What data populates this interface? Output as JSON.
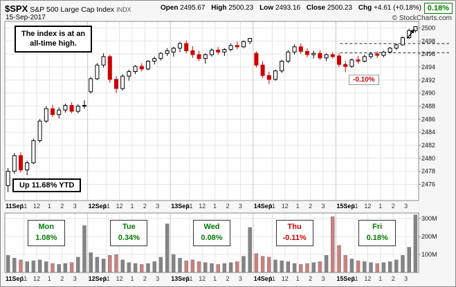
{
  "header": {
    "symbol": "$SPX",
    "name": "S&P 500 Large Cap Index",
    "exchange": "INDX",
    "date": "15-Sep-2017",
    "credit": "© StockCharts.com",
    "quote": {
      "open_label": "Open",
      "open": "2495.67",
      "high_label": "High",
      "high": "2500.23",
      "low_label": "Low",
      "low": "2493.16",
      "close_label": "Close",
      "close": "2500.23",
      "chg_label": "Chg",
      "chg": "+4.61 (+0.18%)"
    }
  },
  "annotations": {
    "all_time_high": "The index is at an all-time high.",
    "ytd": "Up 11.68% YTD",
    "friday_dip": "-0.10%",
    "friday_gain_badge": "0.18%"
  },
  "colors": {
    "candle_up_stroke": "#000000",
    "candle_up_fill": "#ffffff",
    "candle_down": "#cc0000",
    "volume_up": "#848484",
    "volume_down": "#cc8080",
    "positive_text": "#007a00",
    "negative_text": "#cc0000",
    "grid": "#e4e4e4",
    "day_grid": "#c6c6c6",
    "plot_border": "#888888"
  },
  "chart_data": [
    {
      "type": "candlestick",
      "title": "$SPX intraday, 5 trading days (11-15 Sep 2017), 30-minute bars",
      "ylim": [
        2473.5,
        2501
      ],
      "yticks": [
        2476,
        2478,
        2480,
        2482,
        2484,
        2486,
        2488,
        2490,
        2492,
        2494,
        2496,
        2498,
        2500
      ],
      "session": {
        "start_hour": 9.5,
        "end_hour": 16
      },
      "time_ticks": {
        "hours": [
          11,
          12,
          13,
          14,
          15
        ],
        "labels": [
          "11",
          "12",
          "1",
          "2",
          "3"
        ]
      },
      "days": [
        {
          "label": "11Sep",
          "weekday": "Mon",
          "change": "1.08%",
          "direction": "up"
        },
        {
          "label": "12Sep",
          "weekday": "Tue",
          "change": "0.34%",
          "direction": "up"
        },
        {
          "label": "13Sep",
          "weekday": "Wed",
          "change": "0.08%",
          "direction": "up"
        },
        {
          "label": "14Sep",
          "weekday": "Thu",
          "change": "-0.11%",
          "direction": "down"
        },
        {
          "label": "15Sep",
          "weekday": "Fri",
          "change": "0.18%",
          "direction": "up"
        }
      ],
      "dashed_levels": [
        {
          "price": 2497.6,
          "start_day": 4.05
        },
        {
          "price": 2496.2,
          "start_day": 4.05
        }
      ],
      "breakout_arrow": {
        "candle_index": 64,
        "price": 2500.2
      },
      "candles_ohlc": [
        [
          2475.8,
          2478.5,
          2474.8,
          2478.0
        ],
        [
          2478.0,
          2480.8,
          2477.6,
          2480.4
        ],
        [
          2480.4,
          2480.9,
          2477.8,
          2478.2
        ],
        [
          2478.2,
          2479.6,
          2477.4,
          2479.3
        ],
        [
          2479.3,
          2483.0,
          2479.1,
          2482.7
        ],
        [
          2482.7,
          2486.0,
          2482.4,
          2485.7
        ],
        [
          2485.7,
          2488.0,
          2485.4,
          2487.6
        ],
        [
          2487.6,
          2488.2,
          2486.3,
          2486.7
        ],
        [
          2486.7,
          2487.8,
          2486.1,
          2487.4
        ],
        [
          2487.4,
          2488.4,
          2487.0,
          2488.1
        ],
        [
          2488.1,
          2488.6,
          2486.9,
          2487.2
        ],
        [
          2487.2,
          2488.3,
          2486.9,
          2488.0
        ],
        [
          2488.0,
          2488.9,
          2487.6,
          2488.1
        ],
        [
          2490.2,
          2492.5,
          2489.9,
          2492.2
        ],
        [
          2492.2,
          2494.6,
          2492.0,
          2494.3
        ],
        [
          2494.3,
          2496.1,
          2493.9,
          2495.6
        ],
        [
          2495.6,
          2495.9,
          2491.6,
          2492.1
        ],
        [
          2492.1,
          2492.6,
          2490.0,
          2490.7
        ],
        [
          2490.7,
          2492.9,
          2490.4,
          2492.6
        ],
        [
          2492.6,
          2493.6,
          2491.9,
          2493.3
        ],
        [
          2493.3,
          2494.3,
          2492.9,
          2494.1
        ],
        [
          2494.1,
          2494.6,
          2493.3,
          2493.7
        ],
        [
          2493.7,
          2495.1,
          2493.5,
          2494.9
        ],
        [
          2494.9,
          2495.6,
          2494.4,
          2495.3
        ],
        [
          2495.3,
          2496.3,
          2495.0,
          2496.1
        ],
        [
          2496.1,
          2496.9,
          2495.7,
          2496.5
        ],
        [
          2496.3,
          2497.1,
          2495.6,
          2496.9
        ],
        [
          2496.9,
          2497.9,
          2496.3,
          2497.6
        ],
        [
          2497.6,
          2498.1,
          2496.1,
          2496.5
        ],
        [
          2496.5,
          2497.2,
          2495.4,
          2495.9
        ],
        [
          2495.9,
          2496.5,
          2494.9,
          2495.3
        ],
        [
          2495.3,
          2496.1,
          2494.5,
          2495.9
        ],
        [
          2495.9,
          2496.9,
          2495.6,
          2496.6
        ],
        [
          2496.6,
          2497.1,
          2495.9,
          2496.3
        ],
        [
          2496.3,
          2496.9,
          2495.7,
          2496.7
        ],
        [
          2496.7,
          2497.6,
          2496.4,
          2497.3
        ],
        [
          2497.3,
          2497.9,
          2496.7,
          2497.1
        ],
        [
          2497.1,
          2498.1,
          2496.9,
          2497.9
        ],
        [
          2497.9,
          2498.4,
          2497.5,
          2498.4
        ],
        [
          2496.1,
          2496.4,
          2493.9,
          2494.3
        ],
        [
          2494.3,
          2494.9,
          2492.3,
          2492.7
        ],
        [
          2492.7,
          2493.3,
          2491.4,
          2492.1
        ],
        [
          2492.1,
          2493.6,
          2491.9,
          2493.4
        ],
        [
          2493.4,
          2495.1,
          2493.1,
          2494.9
        ],
        [
          2494.9,
          2496.6,
          2494.6,
          2496.3
        ],
        [
          2496.3,
          2497.5,
          2495.9,
          2497.1
        ],
        [
          2497.1,
          2497.6,
          2496.0,
          2496.4
        ],
        [
          2496.4,
          2496.9,
          2495.5,
          2495.9
        ],
        [
          2495.9,
          2496.5,
          2495.3,
          2496.1
        ],
        [
          2496.1,
          2496.6,
          2495.1,
          2495.4
        ],
        [
          2495.4,
          2496.1,
          2494.9,
          2495.9
        ],
        [
          2495.9,
          2496.3,
          2495.3,
          2495.6
        ],
        [
          2495.7,
          2496.1,
          2494.0,
          2494.4
        ],
        [
          2494.4,
          2494.9,
          2493.2,
          2494.1
        ],
        [
          2494.1,
          2495.3,
          2493.9,
          2495.1
        ],
        [
          2495.1,
          2495.7,
          2494.5,
          2494.9
        ],
        [
          2494.9,
          2495.9,
          2494.7,
          2495.6
        ],
        [
          2495.6,
          2496.3,
          2495.3,
          2496.0
        ],
        [
          2496.0,
          2496.4,
          2495.4,
          2495.8
        ],
        [
          2495.8,
          2496.5,
          2495.5,
          2496.3
        ],
        [
          2496.3,
          2497.1,
          2496.1,
          2496.9
        ],
        [
          2496.9,
          2497.6,
          2496.6,
          2497.4
        ],
        [
          2497.4,
          2498.7,
          2497.3,
          2498.5
        ],
        [
          2498.5,
          2499.9,
          2498.3,
          2499.6
        ],
        [
          2499.6,
          2500.2,
          2499.3,
          2500.2
        ]
      ]
    },
    {
      "type": "bar",
      "title": "Volume",
      "units": "millions of shares",
      "ylim": [
        0,
        330
      ],
      "yticks": [
        {
          "value": 100,
          "label": "100M"
        },
        {
          "value": 200,
          "label": "200M"
        },
        {
          "value": 300,
          "label": "300M"
        }
      ],
      "values": [
        95,
        80,
        70,
        60,
        65,
        70,
        60,
        50,
        45,
        50,
        55,
        85,
        260,
        110,
        85,
        75,
        95,
        100,
        70,
        55,
        50,
        45,
        50,
        60,
        85,
        270,
        100,
        80,
        65,
        70,
        60,
        55,
        50,
        45,
        50,
        55,
        60,
        90,
        250,
        105,
        90,
        85,
        70,
        65,
        60,
        50,
        45,
        50,
        55,
        60,
        95,
        310,
        150,
        95,
        75,
        65,
        60,
        55,
        50,
        55,
        60,
        70,
        95,
        140,
        320
      ]
    }
  ]
}
